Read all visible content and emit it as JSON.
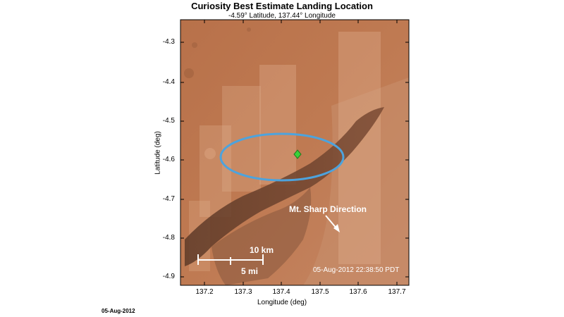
{
  "header": {
    "title": "Curiosity Best Estimate Landing Location",
    "subtitle": "-4.59° Latitude, 137.44° Longitude"
  },
  "axes": {
    "xlabel": "Longitude (deg)",
    "ylabel": "Latitude (deg)",
    "xticks": [
      "137.2",
      "137.3",
      "137.4",
      "137.5",
      "137.6",
      "137.7"
    ],
    "yticks": [
      "-4.3",
      "-4.4",
      "-4.5",
      "-4.6",
      "-4.7",
      "-4.8",
      "-4.9"
    ]
  },
  "map": {
    "landing_site": {
      "lat": -4.59,
      "lon": 137.44,
      "color": "#39d139"
    },
    "ellipse_color": "#4da3dd",
    "annotation": "Mt. Sharp Direction",
    "scale_km": "10 km",
    "scale_mi": "5 mi",
    "timestamp": "05-Aug-2012 22:38:50 PDT"
  },
  "footer": {
    "date": "05-Aug-2012"
  }
}
